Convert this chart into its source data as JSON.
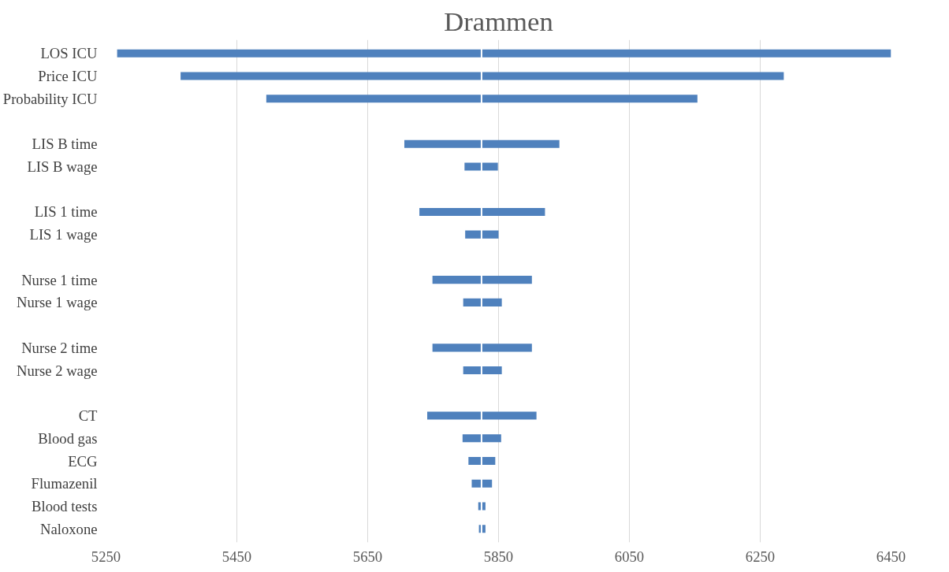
{
  "chart_data": {
    "type": "bar",
    "orientation": "horizontal",
    "title": "Drammen",
    "categories": [
      "LOS ICU",
      "Price ICU",
      "Probability ICU",
      null,
      "LIS B time",
      "LIS B wage",
      null,
      "LIS 1 time",
      "LIS 1 wage",
      null,
      "Nurse 1 time",
      "Nurse 1 wage",
      null,
      "Nurse 2 time",
      "Nurse 2 wage",
      null,
      "CT",
      "Blood gas",
      "ECG",
      "Flumazenil",
      "Blood tests",
      "Naloxone"
    ],
    "base": [
      5267,
      5364,
      5495,
      null,
      5706,
      5798,
      null,
      5729,
      5799,
      null,
      5749,
      5796,
      null,
      5749,
      5796,
      null,
      5741,
      5795,
      5804,
      5809,
      5819,
      5820
    ],
    "values": [
      1185,
      922,
      659,
      null,
      237,
      51,
      null,
      192,
      51,
      null,
      152,
      59,
      null,
      152,
      59,
      null,
      167,
      59,
      41,
      31,
      11,
      10
    ],
    "color": "#4f81bd",
    "xlim": [
      5250,
      6450
    ],
    "xticks": [
      5250,
      5450,
      5650,
      5850,
      6050,
      6250,
      6450
    ],
    "ref_lines": [
      {
        "axis": "x",
        "value": 5824,
        "label": null,
        "color": "#ffffff"
      }
    ],
    "grid": "x"
  }
}
